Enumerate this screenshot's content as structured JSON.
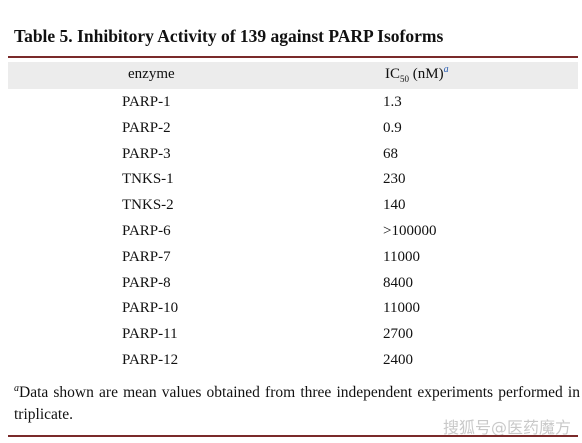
{
  "header": {
    "title": "Table 5. Inhibitory Activity of 139 against PARP Isoforms"
  },
  "table": {
    "columns": [
      "enzyme",
      {
        "text": "IC",
        "sub": "50",
        "rest": "(nM)",
        "note": "a"
      }
    ],
    "rows": [
      [
        "PARP-1",
        "1.3"
      ],
      [
        "PARP-2",
        "0.9"
      ],
      [
        "PARP-3",
        "68"
      ],
      [
        "TNKS-1",
        "230"
      ],
      [
        "TNKS-2",
        "140"
      ],
      [
        "PARP-6",
        ">100000"
      ],
      [
        "PARP-7",
        "11000"
      ],
      [
        "PARP-8",
        "8400"
      ],
      [
        "PARP-10",
        "11000"
      ],
      [
        "PARP-11",
        "2700"
      ],
      [
        "PARP-12",
        "2400"
      ]
    ]
  },
  "footnote": {
    "marker": "a",
    "text": "Data shown are mean values obtained from three independent experiments performed in triplicate."
  },
  "watermark": "搜狐号@医药魔方"
}
